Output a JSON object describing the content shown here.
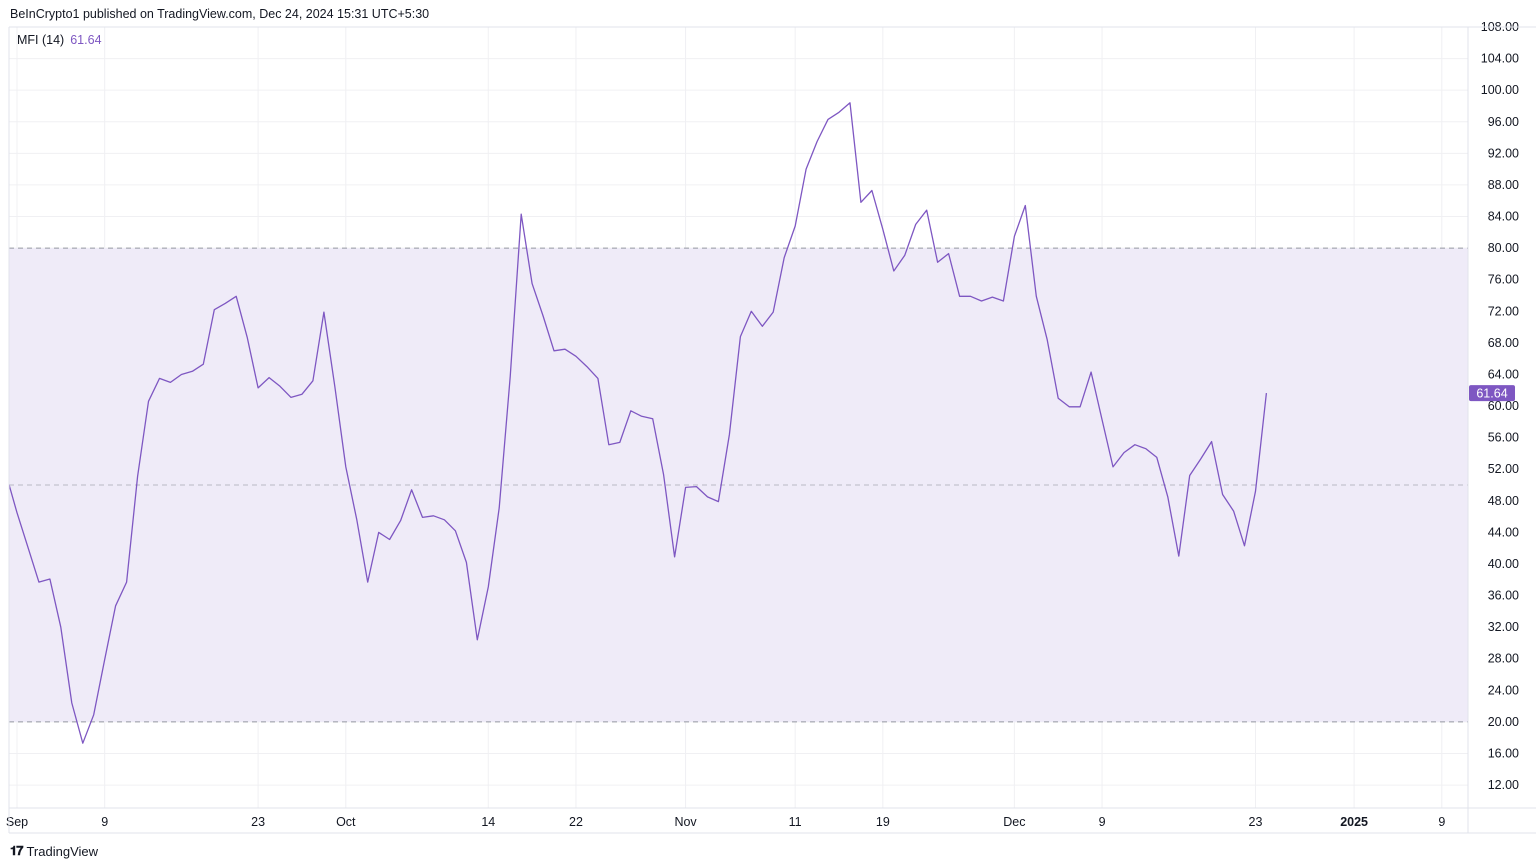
{
  "header": {
    "text": "BeInCrypto1 published on TradingView.com, Dec 24, 2024 15:31 UTC+5:30"
  },
  "legend": {
    "name": "MFI (14)",
    "value": "61.64"
  },
  "footer": {
    "logo": "TV",
    "brand": "TradingView"
  },
  "colors": {
    "line": "#7E57C2",
    "band": "#EFEBF8",
    "grid": "#F0F0F3",
    "dashed": "#9598A1",
    "label_bg": "#7E57C2"
  },
  "chart_data": {
    "type": "line",
    "title": "",
    "series": [
      {
        "name": "MFI (14)",
        "last_label": "61.64",
        "x": [
          "2024-08-31",
          "2024-09-01",
          "2024-09-02",
          "2024-09-03",
          "2024-09-04",
          "2024-09-05",
          "2024-09-06",
          "2024-09-07",
          "2024-09-08",
          "2024-09-09",
          "2024-09-10",
          "2024-09-11",
          "2024-09-12",
          "2024-09-13",
          "2024-09-14",
          "2024-09-15",
          "2024-09-16",
          "2024-09-17",
          "2024-09-18",
          "2024-09-19",
          "2024-09-20",
          "2024-09-21",
          "2024-09-22",
          "2024-09-23",
          "2024-09-24",
          "2024-09-25",
          "2024-09-26",
          "2024-09-27",
          "2024-09-28",
          "2024-09-29",
          "2024-09-30",
          "2024-10-01",
          "2024-10-02",
          "2024-10-03",
          "2024-10-04",
          "2024-10-05",
          "2024-10-06",
          "2024-10-07",
          "2024-10-08",
          "2024-10-09",
          "2024-10-10",
          "2024-10-11",
          "2024-10-12",
          "2024-10-13",
          "2024-10-14",
          "2024-10-15",
          "2024-10-16",
          "2024-10-17",
          "2024-10-18",
          "2024-10-19",
          "2024-10-20",
          "2024-10-21",
          "2024-10-22",
          "2024-10-23",
          "2024-10-24",
          "2024-10-25",
          "2024-10-26",
          "2024-10-27",
          "2024-10-28",
          "2024-10-29",
          "2024-10-30",
          "2024-10-31",
          "2024-11-01",
          "2024-11-02",
          "2024-11-03",
          "2024-11-04",
          "2024-11-05",
          "2024-11-06",
          "2024-11-07",
          "2024-11-08",
          "2024-11-09",
          "2024-11-10",
          "2024-11-11",
          "2024-11-12",
          "2024-11-13",
          "2024-11-14",
          "2024-11-15",
          "2024-11-16",
          "2024-11-17",
          "2024-11-18",
          "2024-11-19",
          "2024-11-20",
          "2024-11-21",
          "2024-11-22",
          "2024-11-23",
          "2024-11-24",
          "2024-11-25",
          "2024-11-26",
          "2024-11-27",
          "2024-11-28",
          "2024-11-29",
          "2024-11-30",
          "2024-12-01",
          "2024-12-02",
          "2024-12-03",
          "2024-12-04",
          "2024-12-05",
          "2024-12-06",
          "2024-12-07",
          "2024-12-08",
          "2024-12-09",
          "2024-12-10",
          "2024-12-11",
          "2024-12-12",
          "2024-12-13",
          "2024-12-14",
          "2024-12-15",
          "2024-12-16",
          "2024-12-17",
          "2024-12-18",
          "2024-12-19",
          "2024-12-20",
          "2024-12-21",
          "2024-12-22",
          "2024-12-23",
          "2024-12-24"
        ],
        "values": [
          51.4,
          46.5,
          42.1,
          37.7,
          38.1,
          32.0,
          22.4,
          17.3,
          20.9,
          27.9,
          34.7,
          37.7,
          51.1,
          60.6,
          63.5,
          63.0,
          64.0,
          64.4,
          65.3,
          72.2,
          73.0,
          73.9,
          68.7,
          62.3,
          63.6,
          62.5,
          61.1,
          61.5,
          63.2,
          71.9,
          62.5,
          52.3,
          45.6,
          37.7,
          44.0,
          43.1,
          45.5,
          49.4,
          45.9,
          46.1,
          45.6,
          44.2,
          40.2,
          30.4,
          37.1,
          47.1,
          63.7,
          84.3,
          75.5,
          71.4,
          67.0,
          67.2,
          66.3,
          65.0,
          63.5,
          55.1,
          55.4,
          59.4,
          58.7,
          58.4,
          51.3,
          40.9,
          49.7,
          49.8,
          48.5,
          47.9,
          56.4,
          68.8,
          72.0,
          70.1,
          71.9,
          78.8,
          82.8,
          90.0,
          93.5,
          96.3,
          97.2,
          98.4,
          85.8,
          87.3,
          82.4,
          77.1,
          79.1,
          83.0,
          84.8,
          78.2,
          79.3,
          73.9,
          73.9,
          73.3,
          73.8,
          73.3,
          81.5,
          85.4,
          73.9,
          68.4,
          61.0,
          59.9,
          59.9,
          64.3,
          58.3,
          52.3,
          54.1,
          55.1,
          54.6,
          53.5,
          48.5,
          41.0,
          51.2,
          53.3,
          55.5,
          48.8,
          46.7,
          42.3,
          49.2,
          61.64
        ]
      }
    ],
    "bands": {
      "upper": 80,
      "middle": 50,
      "lower": 20
    },
    "ylim": [
      9.1,
      108
    ],
    "yticks": [
      "108.00",
      "104.00",
      "100.00",
      "96.00",
      "92.00",
      "88.00",
      "84.00",
      "80.00",
      "76.00",
      "72.00",
      "68.00",
      "64.00",
      "60.00",
      "56.00",
      "52.00",
      "48.00",
      "44.00",
      "40.00",
      "36.00",
      "32.00",
      "28.00",
      "24.00",
      "20.00",
      "16.00",
      "12.00"
    ],
    "xticks": [
      {
        "label": "Sep",
        "date": "2024-09-01"
      },
      {
        "label": "9",
        "date": "2024-09-09"
      },
      {
        "label": "23",
        "date": "2024-09-23"
      },
      {
        "label": "Oct",
        "date": "2024-10-01"
      },
      {
        "label": "14",
        "date": "2024-10-14"
      },
      {
        "label": "22",
        "date": "2024-10-22"
      },
      {
        "label": "Nov",
        "date": "2024-11-01"
      },
      {
        "label": "11",
        "date": "2024-11-11"
      },
      {
        "label": "19",
        "date": "2024-11-19"
      },
      {
        "label": "Dec",
        "date": "2024-12-01"
      },
      {
        "label": "9",
        "date": "2024-12-09"
      },
      {
        "label": "23",
        "date": "2024-12-23"
      },
      {
        "label": "2025",
        "date": "2025-01-01",
        "bold": true
      },
      {
        "label": "9",
        "date": "2025-01-09"
      }
    ],
    "grid": true,
    "xlabel": "",
    "ylabel": ""
  }
}
